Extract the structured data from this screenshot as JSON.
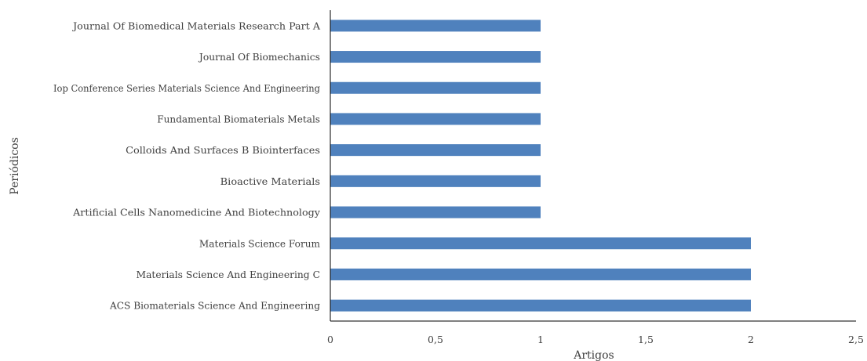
{
  "chart_data": {
    "type": "bar",
    "orientation": "horizontal",
    "title": "",
    "xlabel": "Artigos",
    "ylabel": "Periódicos",
    "xlim": [
      0,
      2.5
    ],
    "x_ticks": [
      "0",
      "0,5",
      "1",
      "1,5",
      "2",
      "2,5"
    ],
    "grid": false,
    "legend": "none",
    "bar_color": "#4f81bd",
    "categories": [
      "Journal Of Biomedical Materials Research Part A",
      "Journal Of Biomechanics",
      "Iop Conference Series Materials Science And Engineering",
      "Fundamental Biomaterials Metals",
      "Colloids And Surfaces B Biointerfaces",
      "Bioactive Materials",
      "Artificial Cells Nanomedicine And Biotechnology",
      "Materials Science Forum",
      "Materials Science And Engineering C",
      "ACS Biomaterials Science And Engineering"
    ],
    "values": [
      1,
      1,
      1,
      1,
      1,
      1,
      1,
      2,
      2,
      2
    ]
  }
}
